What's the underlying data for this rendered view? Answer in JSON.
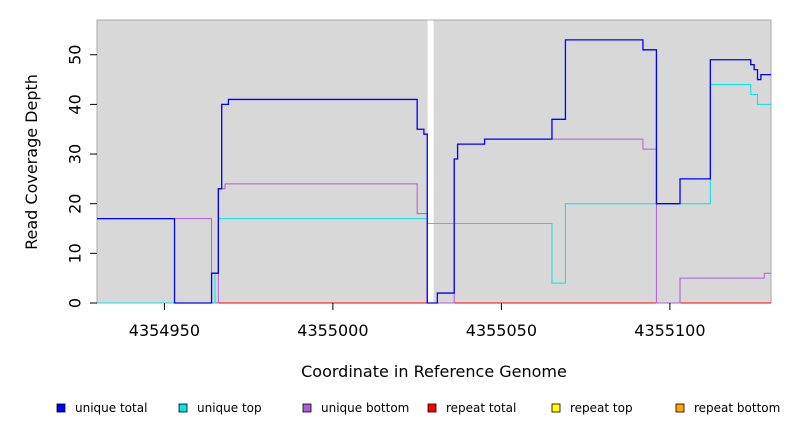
{
  "chart_data": {
    "type": "line",
    "step": true,
    "xlabel": "Coordinate in Reference Genome",
    "ylabel": "Read Coverage Depth",
    "xlim": [
      4354930,
      4355130
    ],
    "ylim": [
      0,
      57
    ],
    "x_ticks": [
      4354950,
      4355000,
      4355050,
      4355100
    ],
    "y_ticks": [
      0,
      10,
      20,
      30,
      40,
      50
    ],
    "background_color": "#d8d8d8",
    "gap_x": 4355029,
    "gap_color": "#ffffff",
    "grid": false,
    "legend_position": "bottom",
    "series": [
      {
        "name": "unique total",
        "color": "#0000ff",
        "x": [
          4354930,
          4354953,
          4354964,
          4354966,
          4354967,
          4354969,
          4355025,
          4355027,
          4355028,
          4355029,
          4355031,
          4355036,
          4355037,
          4355045,
          4355065,
          4355069,
          4355092,
          4355096,
          4355103,
          4355112,
          4355124,
          4355125,
          4355126,
          4355127,
          4355130
        ],
        "y": [
          17,
          0,
          6,
          23,
          40,
          41,
          35,
          34,
          0,
          0,
          2,
          29,
          32,
          33,
          37,
          53,
          51,
          20,
          25,
          49,
          48,
          47,
          45,
          46,
          46
        ]
      },
      {
        "name": "unique top",
        "color": "#00e5e5",
        "x": [
          4354930,
          4354965,
          4354966,
          4355028,
          4355065,
          4355069,
          4355112,
          4355124,
          4355126,
          4355130
        ],
        "y": [
          0,
          6,
          17,
          16,
          4,
          20,
          44,
          42,
          40,
          40
        ]
      },
      {
        "name": "unique bottom",
        "color": "#b05cd8",
        "x": [
          4354930,
          4354964,
          4354966,
          4354968,
          4355025,
          4355028,
          4355036,
          4355037,
          4355045,
          4355092,
          4355096,
          4355103,
          4355128,
          4355130
        ],
        "y": [
          17,
          0,
          23,
          24,
          18,
          0,
          29,
          32,
          33,
          31,
          0,
          5,
          6,
          6
        ]
      },
      {
        "name": "repeat total",
        "color": "#ff0000",
        "x": [
          4354930,
          4355130
        ],
        "y": [
          0,
          0
        ]
      },
      {
        "name": "repeat top",
        "color": "#ffff00",
        "x": [
          4354930,
          4355130
        ],
        "y": [
          0,
          0
        ]
      },
      {
        "name": "repeat bottom",
        "color": "#ffa500",
        "x": [
          4354930,
          4355130
        ],
        "y": [
          0,
          0
        ]
      }
    ]
  }
}
